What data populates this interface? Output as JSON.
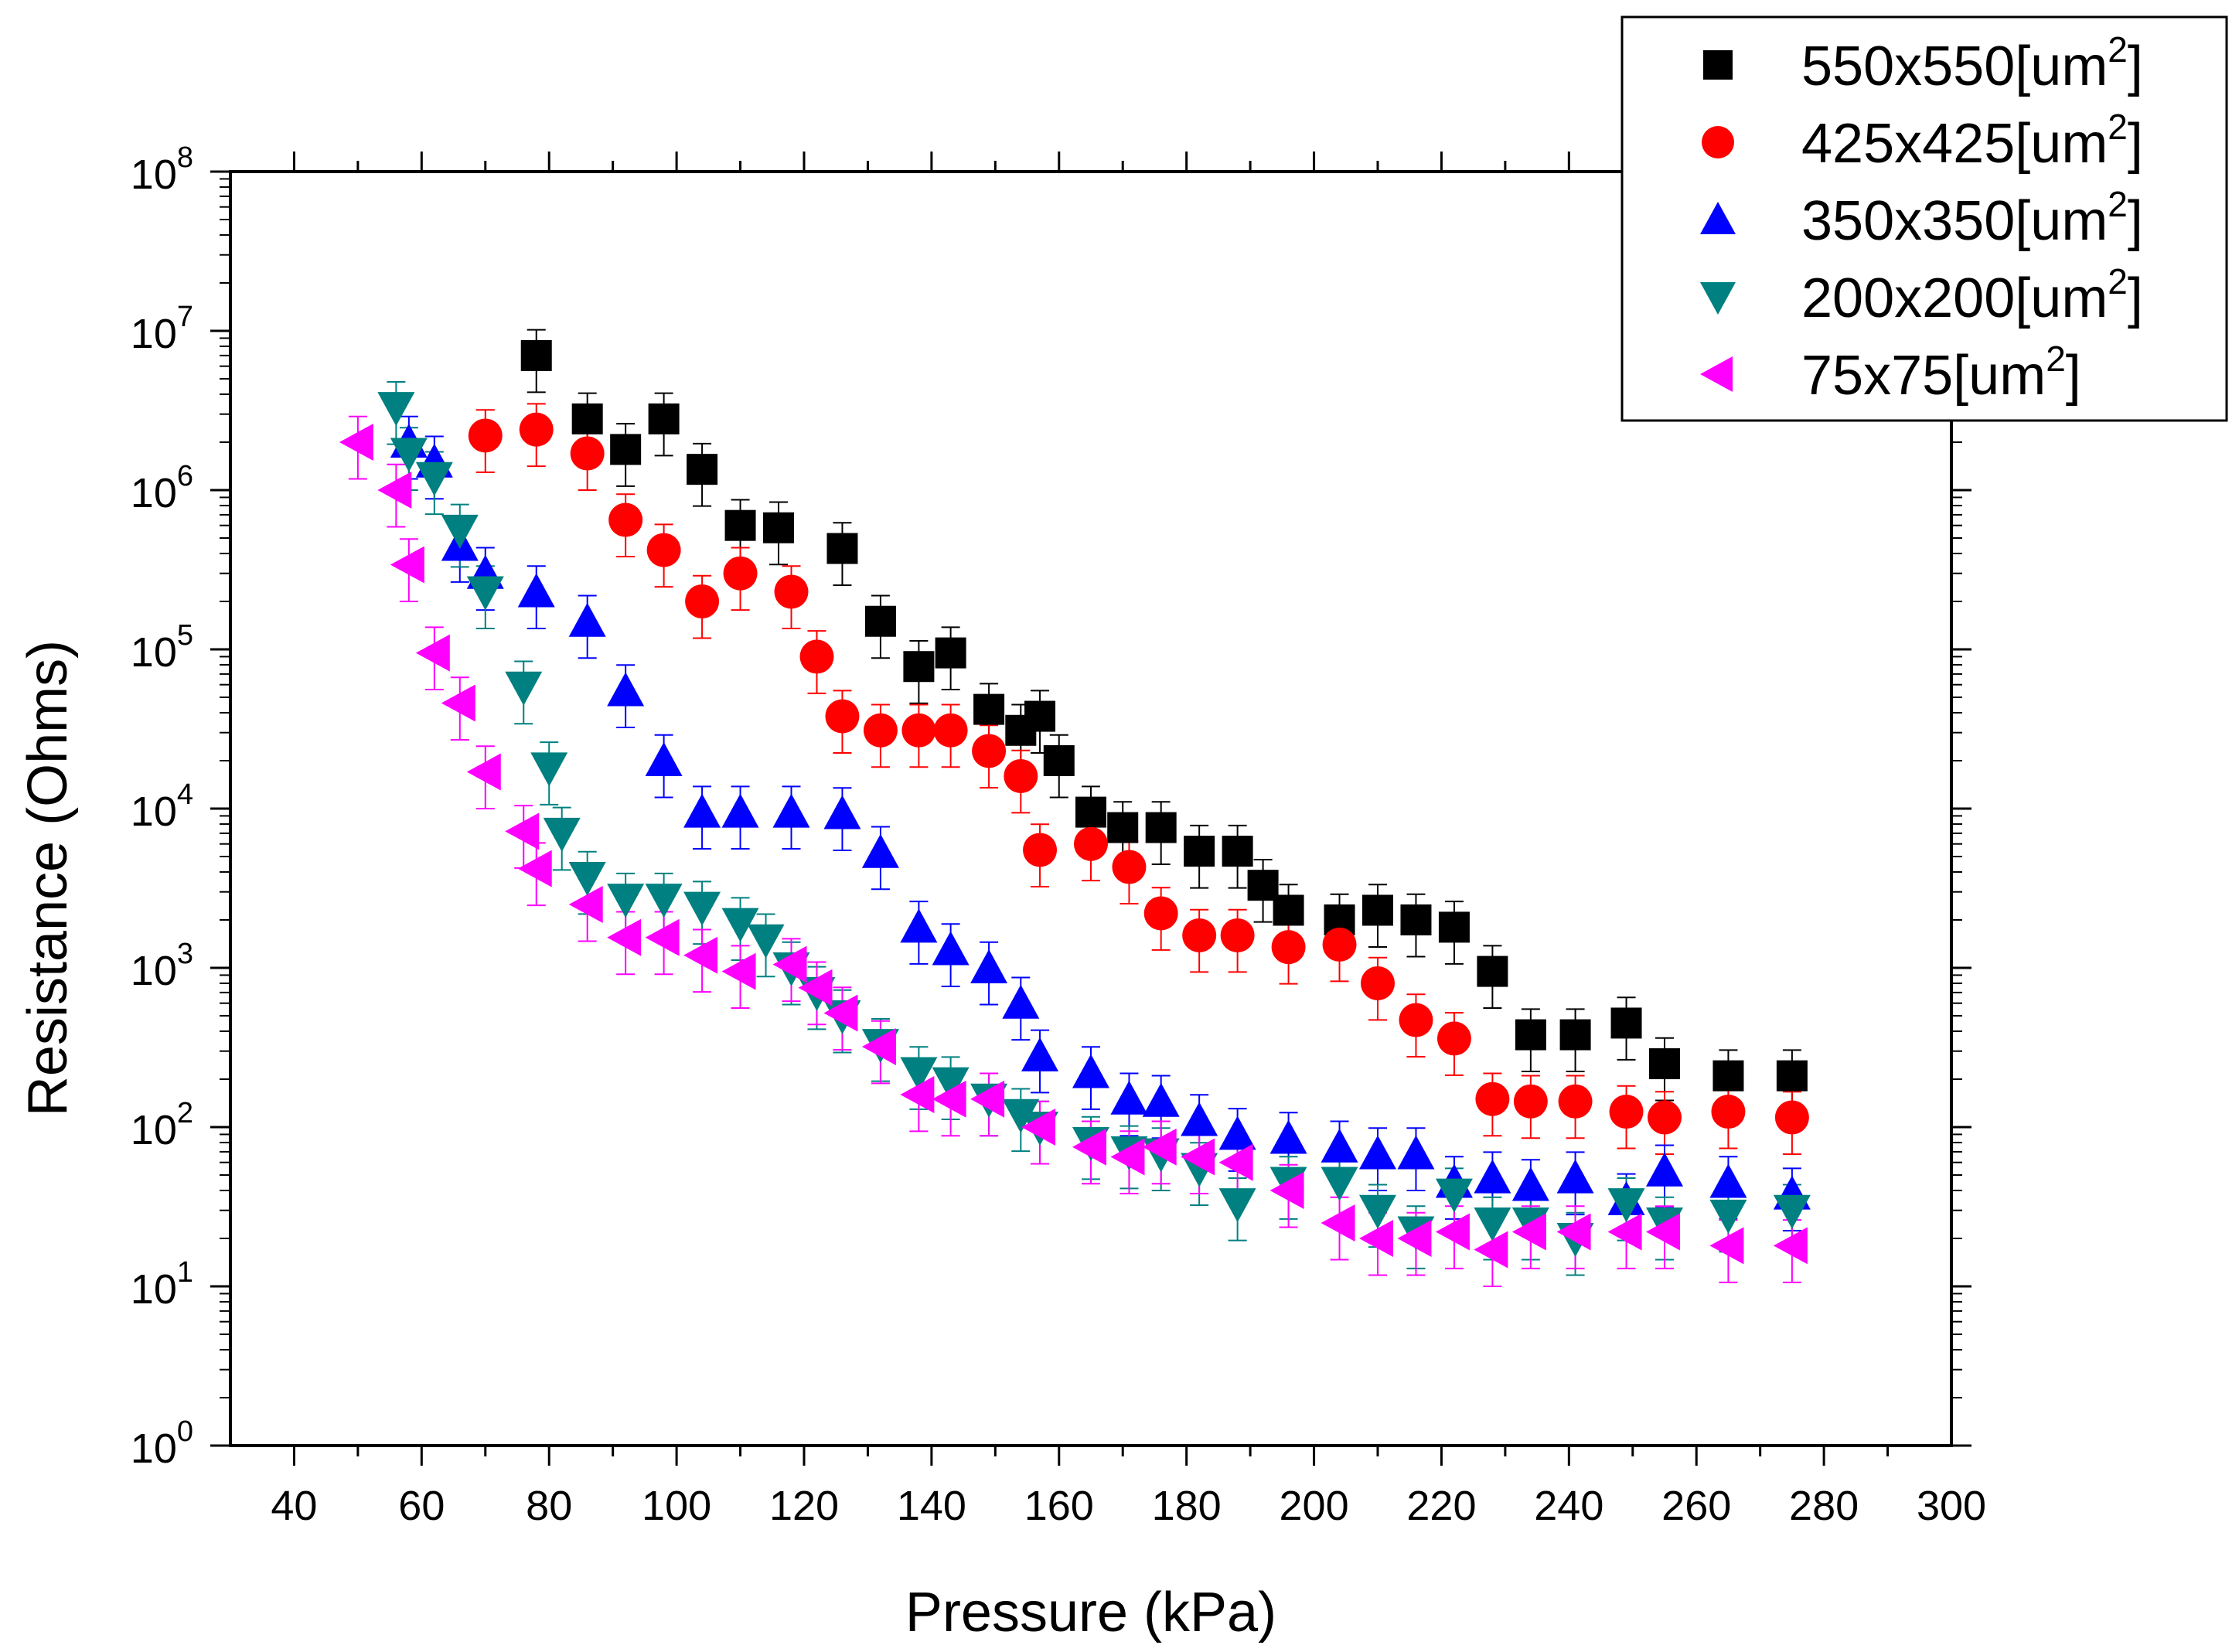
{
  "chart_data": {
    "type": "scatter",
    "title": "",
    "xlabel": "Pressure (kPa)",
    "ylabel": "Resistance (Ohms)",
    "xlim": [
      30,
      300
    ],
    "ylim_log10": [
      0,
      8
    ],
    "x_ticks": [
      "40",
      "60",
      "80",
      "100",
      "120",
      "140",
      "160",
      "180",
      "200",
      "220",
      "240",
      "260",
      "280",
      "300"
    ],
    "x_tick_values": [
      40,
      60,
      80,
      100,
      120,
      140,
      160,
      180,
      200,
      220,
      240,
      260,
      280,
      300
    ],
    "y_tick_base": "10",
    "y_tick_exponents": [
      "0",
      "1",
      "2",
      "3",
      "4",
      "5",
      "6",
      "7",
      "8"
    ],
    "legend_position": "top-right",
    "error_bars": "relative",
    "series": [
      {
        "name": "550x550",
        "unit_base": "[um",
        "unit_sup": "2",
        "unit_end": "]",
        "marker": "square",
        "color": "#000000",
        "x": [
          78,
          86,
          92,
          98,
          104,
          110,
          116,
          126,
          132,
          138,
          143,
          149,
          154,
          157,
          160,
          165,
          170,
          176,
          182,
          188,
          192,
          196,
          204,
          210,
          216,
          222,
          228,
          234,
          241,
          249,
          255,
          265,
          275
        ],
        "y": [
          7000000,
          2800000,
          1800000,
          2800000,
          1350000,
          600000,
          580000,
          430000,
          150000,
          78000,
          95000,
          42000,
          31000,
          38000,
          20000,
          9500,
          7600,
          7600,
          5400,
          5400,
          3300,
          2300,
          2000,
          2300,
          2000,
          1800,
          950,
          380,
          380,
          450,
          250,
          210,
          210
        ]
      },
      {
        "name": "425x425",
        "unit_base": "[um",
        "unit_sup": "2",
        "unit_end": "]",
        "marker": "circle",
        "color": "#ff0000",
        "x": [
          70,
          78,
          86,
          92,
          98,
          104,
          110,
          118,
          122,
          126,
          132,
          138,
          143,
          149,
          154,
          157,
          165,
          171,
          176,
          182,
          188,
          196,
          204,
          210,
          216,
          222,
          228,
          234,
          241,
          249,
          255,
          265,
          275
        ],
        "y": [
          2200000,
          2400000,
          1700000,
          650000,
          420000,
          200000,
          300000,
          230000,
          90000,
          38000,
          31000,
          31000,
          31000,
          23000,
          16000,
          5500,
          6000,
          4300,
          2200,
          1600,
          1600,
          1350,
          1400,
          800,
          470,
          360,
          150,
          145,
          145,
          125,
          115,
          125,
          115
        ]
      },
      {
        "name": "350x350",
        "unit_base": "[um",
        "unit_sup": "2",
        "unit_end": "]",
        "marker": "triangle-up",
        "color": "#0000ff",
        "x": [
          58,
          62,
          66,
          70,
          78,
          86,
          92,
          98,
          104,
          110,
          118,
          126,
          132,
          138,
          143,
          149,
          154,
          157,
          165,
          171,
          176,
          182,
          188,
          196,
          204,
          210,
          216,
          222,
          228,
          234,
          241,
          249,
          255,
          265,
          275
        ],
        "y": [
          2000000,
          1500000,
          450000,
          300000,
          230000,
          150000,
          55000,
          20000,
          9500,
          9500,
          9500,
          9300,
          5300,
          1800,
          1300,
          1000,
          600,
          280,
          220,
          150,
          145,
          110,
          90,
          85,
          75,
          68,
          68,
          45,
          48,
          43,
          48,
          35,
          53,
          45,
          38
        ]
      },
      {
        "name": "200x200",
        "unit_base": "[um",
        "unit_sup": "2",
        "unit_end": "]",
        "marker": "triangle-down",
        "color": "#008080",
        "x": [
          56,
          58,
          62,
          66,
          70,
          76,
          80,
          82,
          86,
          92,
          98,
          104,
          110,
          114,
          118,
          122,
          126,
          132,
          138,
          143,
          149,
          154,
          157,
          165,
          171,
          176,
          182,
          188,
          196,
          204,
          210,
          216,
          222,
          228,
          234,
          241,
          249,
          255,
          265,
          275
        ],
        "y": [
          3300000,
          1700000,
          1200000,
          560000,
          230000,
          58000,
          18000,
          7000,
          3700,
          2700,
          2700,
          2400,
          1900,
          1500,
          1000,
          700,
          500,
          330,
          220,
          190,
          150,
          120,
          100,
          80,
          70,
          68,
          55,
          33,
          45,
          45,
          30,
          22,
          38,
          25,
          25,
          20,
          33,
          25,
          28,
          30
        ]
      },
      {
        "name": "75x75",
        "unit_base": "[um",
        "unit_sup": "2",
        "unit_end": "]",
        "marker": "triangle-left",
        "color": "#ff00ff",
        "x": [
          50,
          56,
          58,
          62,
          66,
          70,
          76,
          78,
          86,
          92,
          98,
          104,
          110,
          118,
          122,
          126,
          132,
          138,
          143,
          149,
          157,
          165,
          171,
          176,
          182,
          188,
          196,
          204,
          210,
          216,
          222,
          228,
          234,
          241,
          249,
          255,
          265,
          275
        ],
        "y": [
          2000000,
          1000000,
          340000,
          95000,
          46000,
          17000,
          7200,
          4200,
          2500,
          1550,
          1550,
          1200,
          950,
          1050,
          750,
          520,
          320,
          160,
          150,
          150,
          100,
          75,
          65,
          75,
          65,
          60,
          40,
          25,
          20,
          20,
          22,
          17,
          22,
          22,
          22,
          22,
          18,
          18
        ]
      }
    ]
  }
}
